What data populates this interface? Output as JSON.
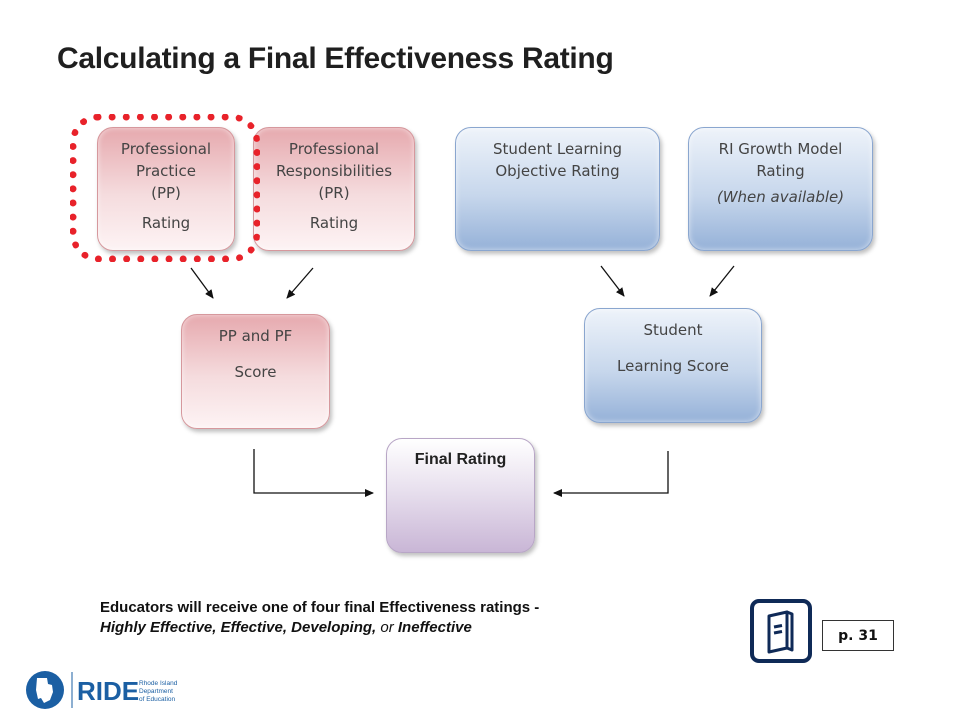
{
  "title": "Calculating a Final Effectiveness Rating",
  "boxes": {
    "pp": {
      "line1": "Professional",
      "line2": "Practice",
      "line3": "(PP)",
      "line4": "Rating"
    },
    "pr": {
      "line1": "Professional",
      "line2": "Responsibilities",
      "line3": "(PR)",
      "line4": "Rating"
    },
    "slo": {
      "line1": "Student Learning",
      "line2": "Objective Rating"
    },
    "growth": {
      "line1": "RI Growth Model",
      "line2": "Rating",
      "line3": "(When available)"
    },
    "pp_pf": {
      "line1": "PP and PF",
      "line2": "Score"
    },
    "student": {
      "line1": "Student",
      "line2": "Learning Score"
    },
    "final": {
      "label": "Final Rating"
    }
  },
  "note": {
    "line1": "Educators will receive one of four final Effectiveness ratings -",
    "ratings": "Highly Effective, Effective, Developing,",
    "or": "or",
    "last": "Ineffective"
  },
  "page_ref": "p. 31",
  "logo": {
    "name": "RIDE",
    "line1": "Rhode Island",
    "line2": "Department",
    "line3": "of Education"
  },
  "colors": {
    "highlight": "#e8222a",
    "navy": "#0f2a57",
    "logo_blue": "#1b5fa3"
  }
}
